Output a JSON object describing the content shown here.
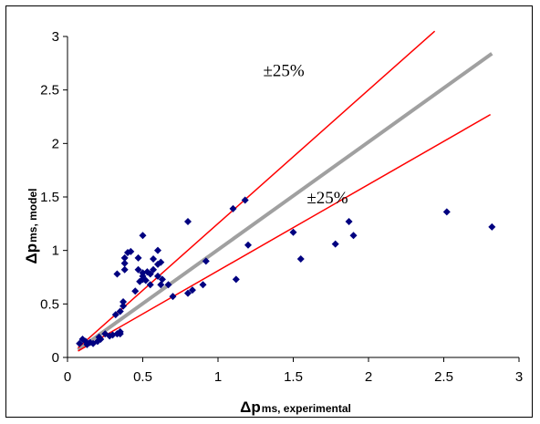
{
  "chart_data": {
    "type": "scatter",
    "xlabel": "Δp",
    "xlabel_sub": "ms, experimental",
    "ylabel": "Δp",
    "ylabel_sub": "ms, model",
    "xlim": [
      0,
      3
    ],
    "ylim": [
      0,
      3
    ],
    "x_ticks": [
      "0",
      "0.5",
      "1",
      "1.5",
      "2",
      "2.5",
      "3"
    ],
    "y_ticks": [
      "0",
      "0.5",
      "1",
      "1.5",
      "2",
      "2.5",
      "3"
    ],
    "grid": false,
    "marker_color": "#000080",
    "points": [
      [
        0.08,
        0.13
      ],
      [
        0.1,
        0.17
      ],
      [
        0.12,
        0.15
      ],
      [
        0.13,
        0.12
      ],
      [
        0.15,
        0.14
      ],
      [
        0.17,
        0.13
      ],
      [
        0.2,
        0.15
      ],
      [
        0.21,
        0.19
      ],
      [
        0.22,
        0.17
      ],
      [
        0.25,
        0.22
      ],
      [
        0.28,
        0.2
      ],
      [
        0.3,
        0.21
      ],
      [
        0.33,
        0.22
      ],
      [
        0.35,
        0.24
      ],
      [
        0.35,
        0.22
      ],
      [
        0.32,
        0.4
      ],
      [
        0.35,
        0.43
      ],
      [
        0.37,
        0.48
      ],
      [
        0.37,
        0.52
      ],
      [
        0.33,
        0.78
      ],
      [
        0.38,
        0.82
      ],
      [
        0.38,
        0.88
      ],
      [
        0.38,
        0.93
      ],
      [
        0.42,
        0.99
      ],
      [
        0.4,
        0.98
      ],
      [
        0.45,
        0.62
      ],
      [
        0.48,
        0.71
      ],
      [
        0.5,
        0.73
      ],
      [
        0.5,
        0.76
      ],
      [
        0.52,
        0.72
      ],
      [
        0.47,
        0.82
      ],
      [
        0.5,
        0.79
      ],
      [
        0.53,
        0.8
      ],
      [
        0.55,
        0.78
      ],
      [
        0.57,
        0.82
      ],
      [
        0.47,
        0.93
      ],
      [
        0.57,
        0.92
      ],
      [
        0.6,
        0.87
      ],
      [
        0.62,
        0.89
      ],
      [
        0.5,
        1.14
      ],
      [
        0.6,
        1.0
      ],
      [
        0.55,
        0.68
      ],
      [
        0.62,
        0.68
      ],
      [
        0.67,
        0.68
      ],
      [
        0.6,
        0.76
      ],
      [
        0.63,
        0.73
      ],
      [
        0.7,
        0.57
      ],
      [
        0.8,
        1.27
      ],
      [
        0.8,
        0.6
      ],
      [
        0.83,
        0.63
      ],
      [
        0.9,
        0.68
      ],
      [
        0.92,
        0.9
      ],
      [
        1.1,
        1.39
      ],
      [
        1.18,
        1.47
      ],
      [
        1.2,
        1.05
      ],
      [
        1.12,
        0.73
      ],
      [
        1.5,
        1.17
      ],
      [
        1.55,
        0.92
      ],
      [
        1.78,
        1.06
      ],
      [
        1.87,
        1.27
      ],
      [
        1.9,
        1.14
      ],
      [
        2.52,
        1.36
      ],
      [
        2.82,
        1.22
      ]
    ],
    "lines": [
      {
        "name": "",
        "color": "#a0a0a0",
        "width": 4,
        "x": [
          0.07,
          2.82
        ],
        "y": [
          0.07,
          2.84
        ]
      },
      {
        "name": "",
        "color": "#ff0000",
        "width": 1.5,
        "x": [
          0.07,
          2.44
        ],
        "y": [
          0.09,
          3.05
        ]
      },
      {
        "name": "",
        "color": "#ff0000",
        "width": 1.5,
        "x": [
          0.07,
          2.81
        ],
        "y": [
          0.06,
          2.27
        ]
      }
    ],
    "annotations": [
      {
        "text": "±25%",
        "x": 1.3,
        "y": 2.63
      },
      {
        "text": "±25%",
        "x": 1.59,
        "y": 1.44
      }
    ]
  }
}
